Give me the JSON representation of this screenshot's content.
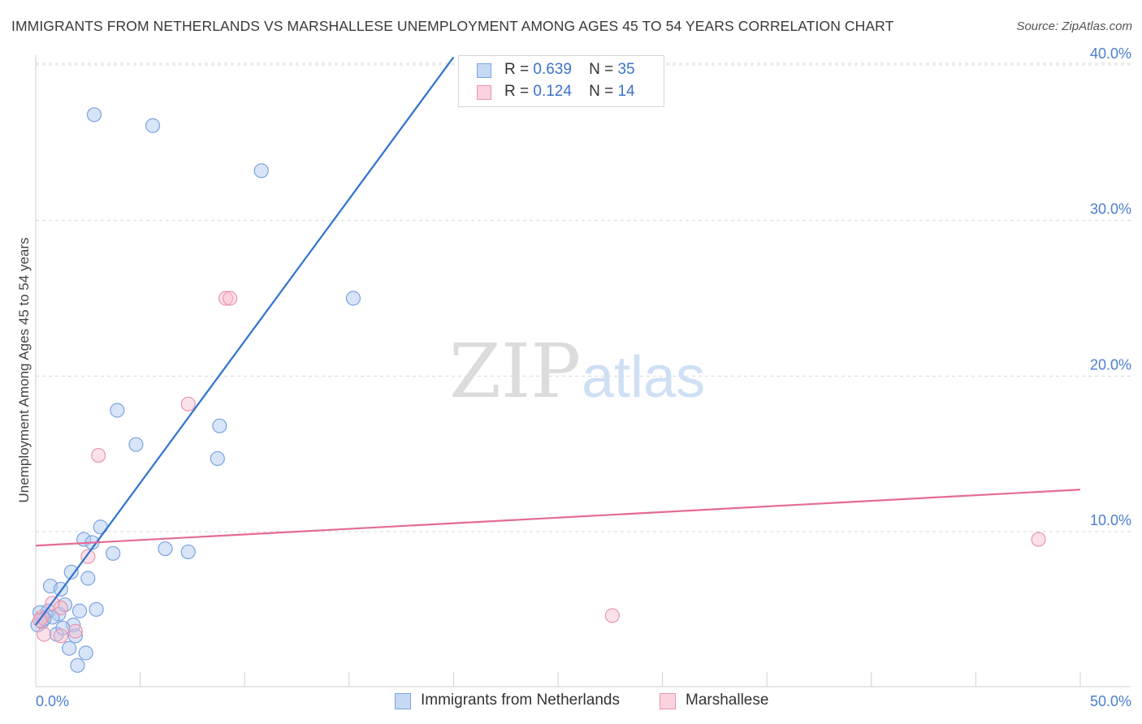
{
  "header": {
    "title": "IMMIGRANTS FROM NETHERLANDS VS MARSHALLESE UNEMPLOYMENT AMONG AGES 45 TO 54 YEARS CORRELATION CHART",
    "source": "Source: ZipAtlas.com"
  },
  "watermark": {
    "zip": "ZIP",
    "atlas": "atlas"
  },
  "legend": {
    "r_label": "R =",
    "n_label": "N =",
    "rows": [
      {
        "r": "0.639",
        "n": "35"
      },
      {
        "r": "0.124",
        "n": "14"
      }
    ]
  },
  "colors": {
    "blue_fill": "#a9c6f0",
    "blue_stroke": "#7aa3e0",
    "blue_line": "#2f72d0",
    "pink_fill": "#f6bccd",
    "pink_stroke": "#ea94b0",
    "pink_line": "#e56b92",
    "grid": "#d9d9d9",
    "axis_text": "#4a7fcf"
  },
  "chart_data": {
    "type": "scatter",
    "title": "IMMIGRANTS FROM NETHERLANDS VS MARSHALLESE UNEMPLOYMENT AMONG AGES 45 TO 54 YEARS CORRELATION CHART",
    "xlabel": "",
    "ylabel": "Unemployment Among Ages 45 to 54 years",
    "xlim": [
      0,
      50
    ],
    "ylim": [
      0,
      42
    ],
    "x_tick_labels": [
      "0.0%",
      "50.0%"
    ],
    "y_ticks": [
      10,
      20,
      30,
      40
    ],
    "y_tick_labels": [
      "10.0%",
      "20.0%",
      "30.0%",
      "40.0%"
    ],
    "grid": "horizontal dashed",
    "legend_placement": "bottom-center",
    "series": [
      {
        "name": "Immigrants from Netherlands",
        "color": "#a9c6f0",
        "points": [
          [
            2.8,
            36.8
          ],
          [
            5.6,
            36.1
          ],
          [
            10.8,
            33.2
          ],
          [
            15.2,
            25.0
          ],
          [
            3.9,
            17.8
          ],
          [
            4.8,
            15.6
          ],
          [
            8.8,
            16.8
          ],
          [
            8.7,
            14.7
          ],
          [
            3.1,
            10.3
          ],
          [
            2.3,
            9.5
          ],
          [
            2.7,
            9.3
          ],
          [
            3.7,
            8.6
          ],
          [
            6.2,
            8.9
          ],
          [
            7.3,
            8.7
          ],
          [
            1.7,
            7.4
          ],
          [
            2.5,
            7.0
          ],
          [
            0.7,
            6.5
          ],
          [
            1.2,
            6.3
          ],
          [
            0.2,
            4.8
          ],
          [
            0.6,
            4.9
          ],
          [
            1.1,
            4.7
          ],
          [
            1.4,
            5.3
          ],
          [
            2.1,
            4.9
          ],
          [
            2.9,
            5.0
          ],
          [
            0.3,
            4.2
          ],
          [
            0.8,
            4.5
          ],
          [
            1.8,
            4.0
          ],
          [
            1.0,
            3.4
          ],
          [
            1.9,
            3.3
          ],
          [
            1.6,
            2.5
          ],
          [
            2.4,
            2.2
          ],
          [
            2.0,
            1.4
          ],
          [
            0.1,
            4.0
          ],
          [
            0.4,
            4.4
          ],
          [
            1.3,
            3.8
          ]
        ],
        "trend": {
          "x": [
            0,
            20
          ],
          "y": [
            4.0,
            40.5
          ]
        }
      },
      {
        "name": "Marshallese",
        "color": "#f6bccd",
        "points": [
          [
            9.1,
            25.0
          ],
          [
            9.3,
            25.0
          ],
          [
            7.3,
            18.2
          ],
          [
            3.0,
            14.9
          ],
          [
            2.5,
            8.4
          ],
          [
            0.8,
            5.4
          ],
          [
            1.2,
            5.1
          ],
          [
            0.3,
            4.5
          ],
          [
            0.4,
            3.4
          ],
          [
            1.2,
            3.3
          ],
          [
            1.9,
            3.6
          ],
          [
            27.6,
            4.6
          ],
          [
            48.0,
            9.5
          ],
          [
            0.2,
            4.3
          ]
        ],
        "trend": {
          "x": [
            0,
            50
          ],
          "y": [
            9.1,
            12.7
          ]
        }
      }
    ]
  },
  "bottom_legend": [
    {
      "label": "Immigrants from Netherlands"
    },
    {
      "label": "Marshallese"
    }
  ]
}
